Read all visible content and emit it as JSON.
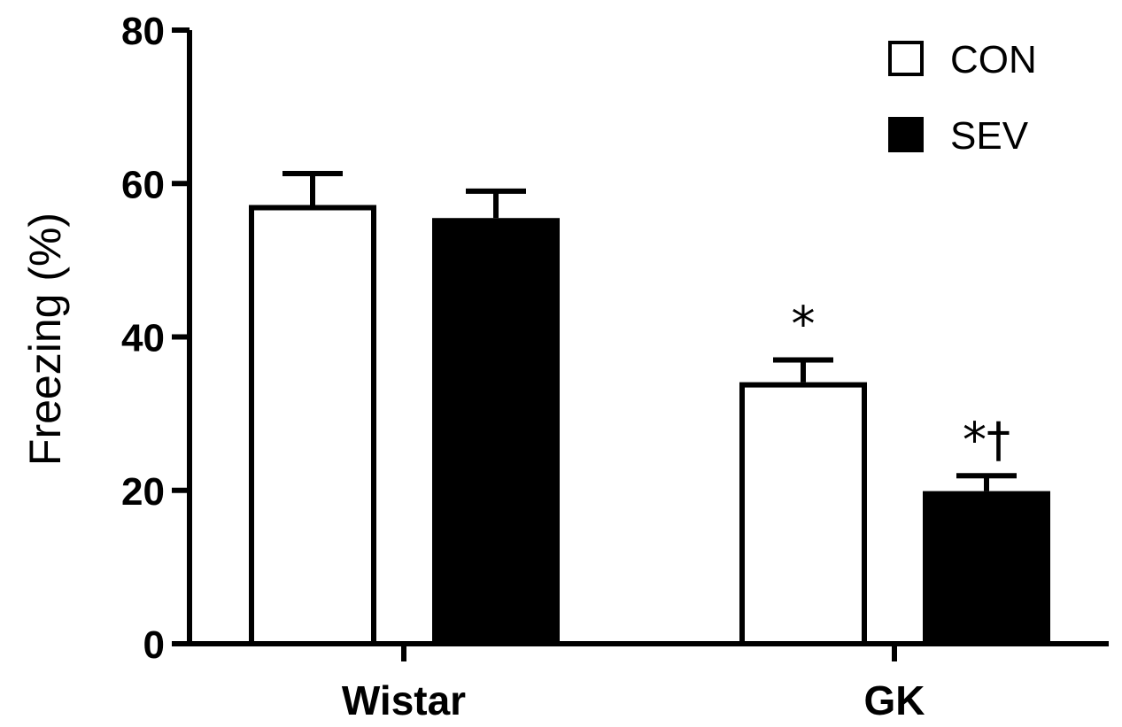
{
  "chart_data": {
    "type": "bar",
    "title": "",
    "xlabel": "",
    "ylabel": "Freezing (%)",
    "ylim": [
      0,
      80
    ],
    "yticks": [
      0,
      20,
      40,
      60,
      80
    ],
    "ytick_labels": [
      "0",
      "20",
      "40",
      "60",
      "80"
    ],
    "categories": [
      "Wistar",
      "GK"
    ],
    "series": [
      {
        "name": "CON",
        "fill": "#ffffff",
        "stroke": "#000000",
        "values": [
          57.2,
          34.1
        ],
        "errors": [
          4.1,
          2.9
        ],
        "annotations": [
          "",
          "*"
        ]
      },
      {
        "name": "SEV",
        "fill": "#000000",
        "stroke": "#000000",
        "values": [
          55.5,
          19.9
        ],
        "errors": [
          3.5,
          2.0
        ],
        "annotations": [
          "",
          "*†"
        ]
      }
    ],
    "legend": "top-right",
    "grid": false
  }
}
